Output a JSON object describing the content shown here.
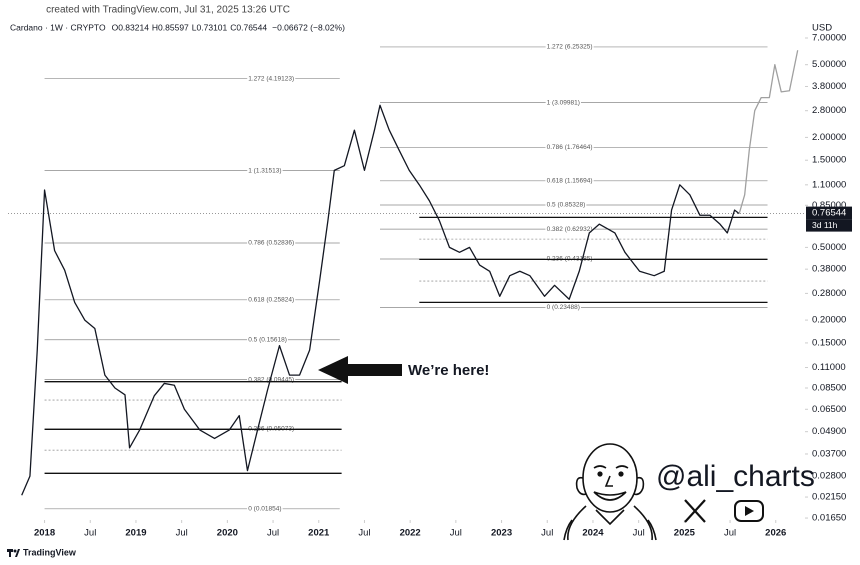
{
  "header": {
    "created": "created with TradingView.com, Jul 31, 2025 13:26 UTC",
    "symbol": "Cardano · 1W · CRYPTO",
    "ohlc": [
      "O0.83214",
      "H0.85597",
      "L0.73101",
      "C0.76544"
    ],
    "change": "−0.06672 (−8.02%)"
  },
  "chart_data": {
    "type": "line",
    "log": true,
    "grid": false,
    "currency": "USD",
    "xlim": [
      2017.6,
      2026.32
    ],
    "ylim": [
      0.0161,
      7.94
    ],
    "xticks": [
      2018,
      {
        "value": 2018.5,
        "label": "Jul"
      },
      2019,
      {
        "value": 2019.5,
        "label": "Jul"
      },
      2020,
      {
        "value": 2020.5,
        "label": "Jul"
      },
      2021,
      {
        "value": 2021.5,
        "label": "Jul"
      },
      2022,
      {
        "value": 2022.5,
        "label": "Jul"
      },
      2023,
      {
        "value": 2023.5,
        "label": "Jul"
      },
      2024,
      {
        "value": 2024.5,
        "label": "Jul"
      },
      2025,
      {
        "value": 2025.5,
        "label": "Jul"
      },
      2026
    ],
    "yticks": [
      {
        "value": 7,
        "label": "7.00000"
      },
      {
        "value": 5,
        "label": "5.00000"
      },
      {
        "value": 3.8,
        "label": "3.80000"
      },
      {
        "value": 2.8,
        "label": "2.80000"
      },
      {
        "value": 2,
        "label": "2.00000"
      },
      {
        "value": 1.5,
        "label": "1.50000"
      },
      {
        "value": 1.1,
        "label": "1.10000"
      },
      {
        "value": 0.85,
        "label": "0.85000"
      },
      {
        "value": 0.5,
        "label": "0.50000"
      },
      {
        "value": 0.38,
        "label": "0.38000"
      },
      {
        "value": 0.28,
        "label": "0.28000"
      },
      {
        "value": 0.2,
        "label": "0.20000"
      },
      {
        "value": 0.15,
        "label": "0.15000"
      },
      {
        "value": 0.11,
        "label": "0.11000"
      },
      {
        "value": 0.085,
        "label": "0.08500"
      },
      {
        "value": 0.065,
        "label": "0.06500"
      },
      {
        "value": 0.049,
        "label": "0.04900"
      },
      {
        "value": 0.037,
        "label": "0.03700"
      },
      {
        "value": 0.028,
        "label": "0.02800"
      },
      {
        "value": 0.0215,
        "label": "0.02150"
      },
      {
        "value": 0.0165,
        "label": "0.01650"
      }
    ],
    "x": [
      2017.75,
      2017.84,
      2017.92,
      2018.0,
      2018.11,
      2018.22,
      2018.33,
      2018.44,
      2018.55,
      2018.66,
      2018.77,
      2018.88,
      2018.93,
      2019.04,
      2019.2,
      2019.31,
      2019.42,
      2019.53,
      2019.7,
      2019.86,
      2020.02,
      2020.13,
      2020.22,
      2020.33,
      2020.44,
      2020.57,
      2020.68,
      2020.79,
      2020.9,
      2021.01,
      2021.1,
      2021.17,
      2021.28,
      2021.39,
      2021.5,
      2021.61,
      2021.67,
      2021.77,
      2021.88,
      2021.99,
      2022.1,
      2022.21,
      2022.32,
      2022.43,
      2022.54,
      2022.65,
      2022.76,
      2022.87,
      2022.98,
      2023.09,
      2023.2,
      2023.31,
      2023.47,
      2023.58,
      2023.74,
      2023.85,
      2023.96,
      2024.07,
      2024.24,
      2024.35,
      2024.51,
      2024.67,
      2024.78,
      2024.86,
      2024.95,
      2025.06,
      2025.17,
      2025.28,
      2025.39,
      2025.47,
      2025.55,
      2025.6,
      2025.66,
      2025.71,
      2025.77,
      2025.84,
      2025.93,
      2025.99,
      2026.06,
      2026.15,
      2026.24
    ],
    "series": [
      {
        "color": "#131722",
        "values": [
          0.022,
          0.028,
          0.137,
          1.03,
          0.48,
          0.375,
          0.25,
          0.2,
          0.18,
          0.1,
          0.085,
          0.078,
          0.04,
          0.05,
          0.077,
          0.09,
          0.088,
          0.065,
          0.05,
          0.045,
          0.05,
          0.06,
          0.03,
          0.05,
          0.083,
          0.145,
          0.1,
          0.1,
          0.137,
          0.33,
          0.7,
          1.32,
          1.4,
          2.19,
          1.32,
          2.2,
          3.0,
          2.2,
          1.7,
          1.32,
          1.1,
          0.9,
          0.7,
          0.5,
          0.47,
          0.5,
          0.4,
          0.37,
          0.27,
          0.35,
          0.37,
          0.35,
          0.27,
          0.31,
          0.26,
          0.37,
          0.6,
          0.67,
          0.6,
          0.47,
          0.37,
          0.35,
          0.37,
          0.8,
          1.1,
          0.97,
          0.75,
          0.75,
          0.67,
          0.6,
          0.8,
          0.765,
          null,
          null,
          null,
          null,
          null,
          null,
          null,
          null,
          null
        ]
      },
      {
        "color": "#a0a0a0",
        "values": [
          null,
          null,
          null,
          null,
          null,
          null,
          null,
          null,
          null,
          null,
          null,
          null,
          null,
          null,
          null,
          null,
          null,
          null,
          null,
          null,
          null,
          null,
          null,
          null,
          null,
          null,
          null,
          null,
          null,
          null,
          null,
          null,
          null,
          null,
          null,
          null,
          null,
          null,
          null,
          null,
          null,
          null,
          null,
          null,
          null,
          null,
          null,
          null,
          null,
          null,
          null,
          null,
          null,
          null,
          null,
          null,
          null,
          null,
          null,
          null,
          null,
          null,
          null,
          null,
          null,
          null,
          null,
          null,
          null,
          null,
          null,
          0.765,
          0.97,
          1.7,
          2.8,
          3.3,
          3.3,
          5.0,
          3.55,
          3.6,
          6.0
        ]
      }
    ],
    "last_price": 0.76544,
    "countdown": "3d 11h",
    "fib_sets": [
      {
        "x_range": [
          2018.0,
          2021.23
        ],
        "levels": [
          {
            "label": "1.272 (4.19123)",
            "value": 4.19123
          },
          {
            "label": "1 (1.31513)",
            "value": 1.31513
          },
          {
            "label": "0.786 (0.52836)",
            "value": 0.52836
          },
          {
            "label": "0.618 (0.25824)",
            "value": 0.25824
          },
          {
            "label": "0.5 (0.15618)",
            "value": 0.15618
          },
          {
            "label": "0.382 (0.09445)",
            "value": 0.09445
          },
          {
            "label": "0.236 (0.05073)",
            "value": 0.05073
          },
          {
            "label": "0 (0.01854)",
            "value": 0.01854
          }
        ]
      },
      {
        "x_range": [
          2021.67,
          2025.91
        ],
        "levels": [
          {
            "label": "1.272 (6.25325)",
            "value": 6.25325
          },
          {
            "label": "1 (3.09981)",
            "value": 3.09981
          },
          {
            "label": "0.786 (1.76464)",
            "value": 1.76464
          },
          {
            "label": "0.618 (1.15694)",
            "value": 1.15694
          },
          {
            "label": "0.5 (0.85328)",
            "value": 0.85328
          },
          {
            "label": "0.382 (0.62932)",
            "value": 0.62932
          },
          {
            "label": "0.236 (0.43185)",
            "value": 0.43185
          },
          {
            "label": "0 (0.23488)",
            "value": 0.23488
          }
        ]
      }
    ],
    "support_lines": [
      {
        "x_range": [
          2018.0,
          2021.25
        ],
        "values": [
          0.092,
          0.0505,
          0.029
        ]
      },
      {
        "x_range": [
          2022.1,
          2025.91
        ],
        "values": [
          0.73,
          0.43,
          0.25
        ]
      }
    ],
    "dashed_lines": [
      {
        "x_range": [
          2018.0,
          2021.25
        ],
        "values": [
          0.073,
          0.0388
        ]
      },
      {
        "x_range": [
          2022.1,
          2025.91
        ],
        "values": [
          0.555,
          0.327
        ]
      }
    ],
    "annotation": "We’re here!"
  },
  "watermark": {
    "handle": "@ali_charts"
  },
  "footer": {
    "brand": "TradingView"
  }
}
